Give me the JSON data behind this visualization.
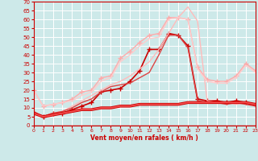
{
  "xlabel": "Vent moyen/en rafales ( km/h )",
  "xlim": [
    0,
    23
  ],
  "ylim": [
    0,
    70
  ],
  "yticks": [
    0,
    5,
    10,
    15,
    20,
    25,
    30,
    35,
    40,
    45,
    50,
    55,
    60,
    65,
    70
  ],
  "xticks": [
    0,
    1,
    2,
    3,
    4,
    5,
    6,
    7,
    8,
    9,
    10,
    11,
    12,
    13,
    14,
    15,
    16,
    17,
    18,
    19,
    20,
    21,
    22,
    23
  ],
  "bg_color": "#cde9e9",
  "grid_color": "#ffffff",
  "series": [
    {
      "x": [
        0,
        1,
        2,
        3,
        4,
        5,
        6,
        7,
        8,
        9,
        10,
        11,
        12,
        13,
        14,
        15,
        16,
        17,
        18,
        19,
        20,
        21,
        22,
        23
      ],
      "y": [
        7,
        5,
        7,
        7,
        9,
        11,
        13,
        19,
        20,
        21,
        25,
        31,
        43,
        43,
        52,
        51,
        45,
        15,
        14,
        14,
        13,
        14,
        13,
        12
      ],
      "color": "#cc0000",
      "linewidth": 1.2,
      "marker": "+",
      "markersize": 4,
      "alpha": 1.0
    },
    {
      "x": [
        0,
        1,
        2,
        3,
        4,
        5,
        6,
        7,
        8,
        9,
        10,
        11,
        12,
        13,
        14,
        15,
        16,
        17,
        18,
        19,
        20,
        21,
        22,
        23
      ],
      "y": [
        20,
        11,
        12,
        13,
        15,
        19,
        20,
        27,
        28,
        38,
        42,
        47,
        51,
        52,
        61,
        61,
        60,
        33,
        26,
        25,
        25,
        28,
        35,
        31
      ],
      "color": "#ffaaaa",
      "linewidth": 1.0,
      "marker": "+",
      "markersize": 4,
      "alpha": 1.0
    },
    {
      "x": [
        0,
        1,
        2,
        3,
        4,
        5,
        6,
        7,
        8,
        9,
        10,
        11,
        12,
        13,
        14,
        15,
        16,
        17,
        18,
        19,
        20,
        21,
        22,
        23
      ],
      "y": [
        8,
        5,
        7,
        8,
        11,
        14,
        17,
        20,
        23,
        25,
        28,
        32,
        36,
        43,
        52,
        61,
        67,
        59,
        14,
        13,
        13,
        12,
        13,
        12
      ],
      "color": "#ffbbbb",
      "linewidth": 1.0,
      "marker": null,
      "markersize": 0,
      "alpha": 1.0
    },
    {
      "x": [
        0,
        1,
        2,
        3,
        4,
        5,
        6,
        7,
        8,
        9,
        10,
        11,
        12,
        13,
        14,
        15,
        16,
        17,
        18,
        19,
        20,
        21,
        22,
        23
      ],
      "y": [
        20,
        11,
        12,
        13,
        14,
        17,
        19,
        25,
        27,
        36,
        40,
        45,
        49,
        50,
        60,
        61,
        60,
        32,
        25,
        24,
        24,
        27,
        34,
        30
      ],
      "color": "#ffcccc",
      "linewidth": 1.0,
      "marker": null,
      "markersize": 0,
      "alpha": 1.0
    },
    {
      "x": [
        0,
        1,
        2,
        3,
        4,
        5,
        6,
        7,
        8,
        9,
        10,
        11,
        12,
        13,
        14,
        15,
        16,
        17,
        18,
        19,
        20,
        21,
        22,
        23
      ],
      "y": [
        8,
        5,
        7,
        8,
        10,
        13,
        15,
        19,
        22,
        23,
        24,
        27,
        30,
        40,
        51,
        51,
        44,
        14,
        13,
        13,
        12,
        13,
        12,
        11
      ],
      "color": "#dd4444",
      "linewidth": 1.0,
      "marker": null,
      "markersize": 0,
      "alpha": 1.0
    },
    {
      "x": [
        0,
        1,
        2,
        3,
        4,
        5,
        6,
        7,
        8,
        9,
        10,
        11,
        12,
        13,
        14,
        15,
        16,
        17,
        18,
        19,
        20,
        21,
        22,
        23
      ],
      "y": [
        7,
        5,
        6,
        7,
        8,
        9,
        9,
        10,
        10,
        11,
        11,
        12,
        12,
        12,
        12,
        12,
        13,
        13,
        13,
        13,
        13,
        13,
        13,
        12
      ],
      "color": "#cc0000",
      "linewidth": 2.5,
      "marker": null,
      "markersize": 0,
      "alpha": 1.0
    },
    {
      "x": [
        0,
        1,
        2,
        3,
        4,
        5,
        6,
        7,
        8,
        9,
        10,
        11,
        12,
        13,
        14,
        15,
        16,
        17,
        18,
        19,
        20,
        21,
        22,
        23
      ],
      "y": [
        7,
        5,
        6,
        7,
        8,
        9,
        9,
        10,
        10,
        11,
        11,
        12,
        12,
        12,
        12,
        12,
        13,
        13,
        13,
        13,
        13,
        13,
        13,
        12
      ],
      "color": "#ff6666",
      "linewidth": 1.2,
      "marker": null,
      "markersize": 0,
      "alpha": 0.8
    }
  ]
}
